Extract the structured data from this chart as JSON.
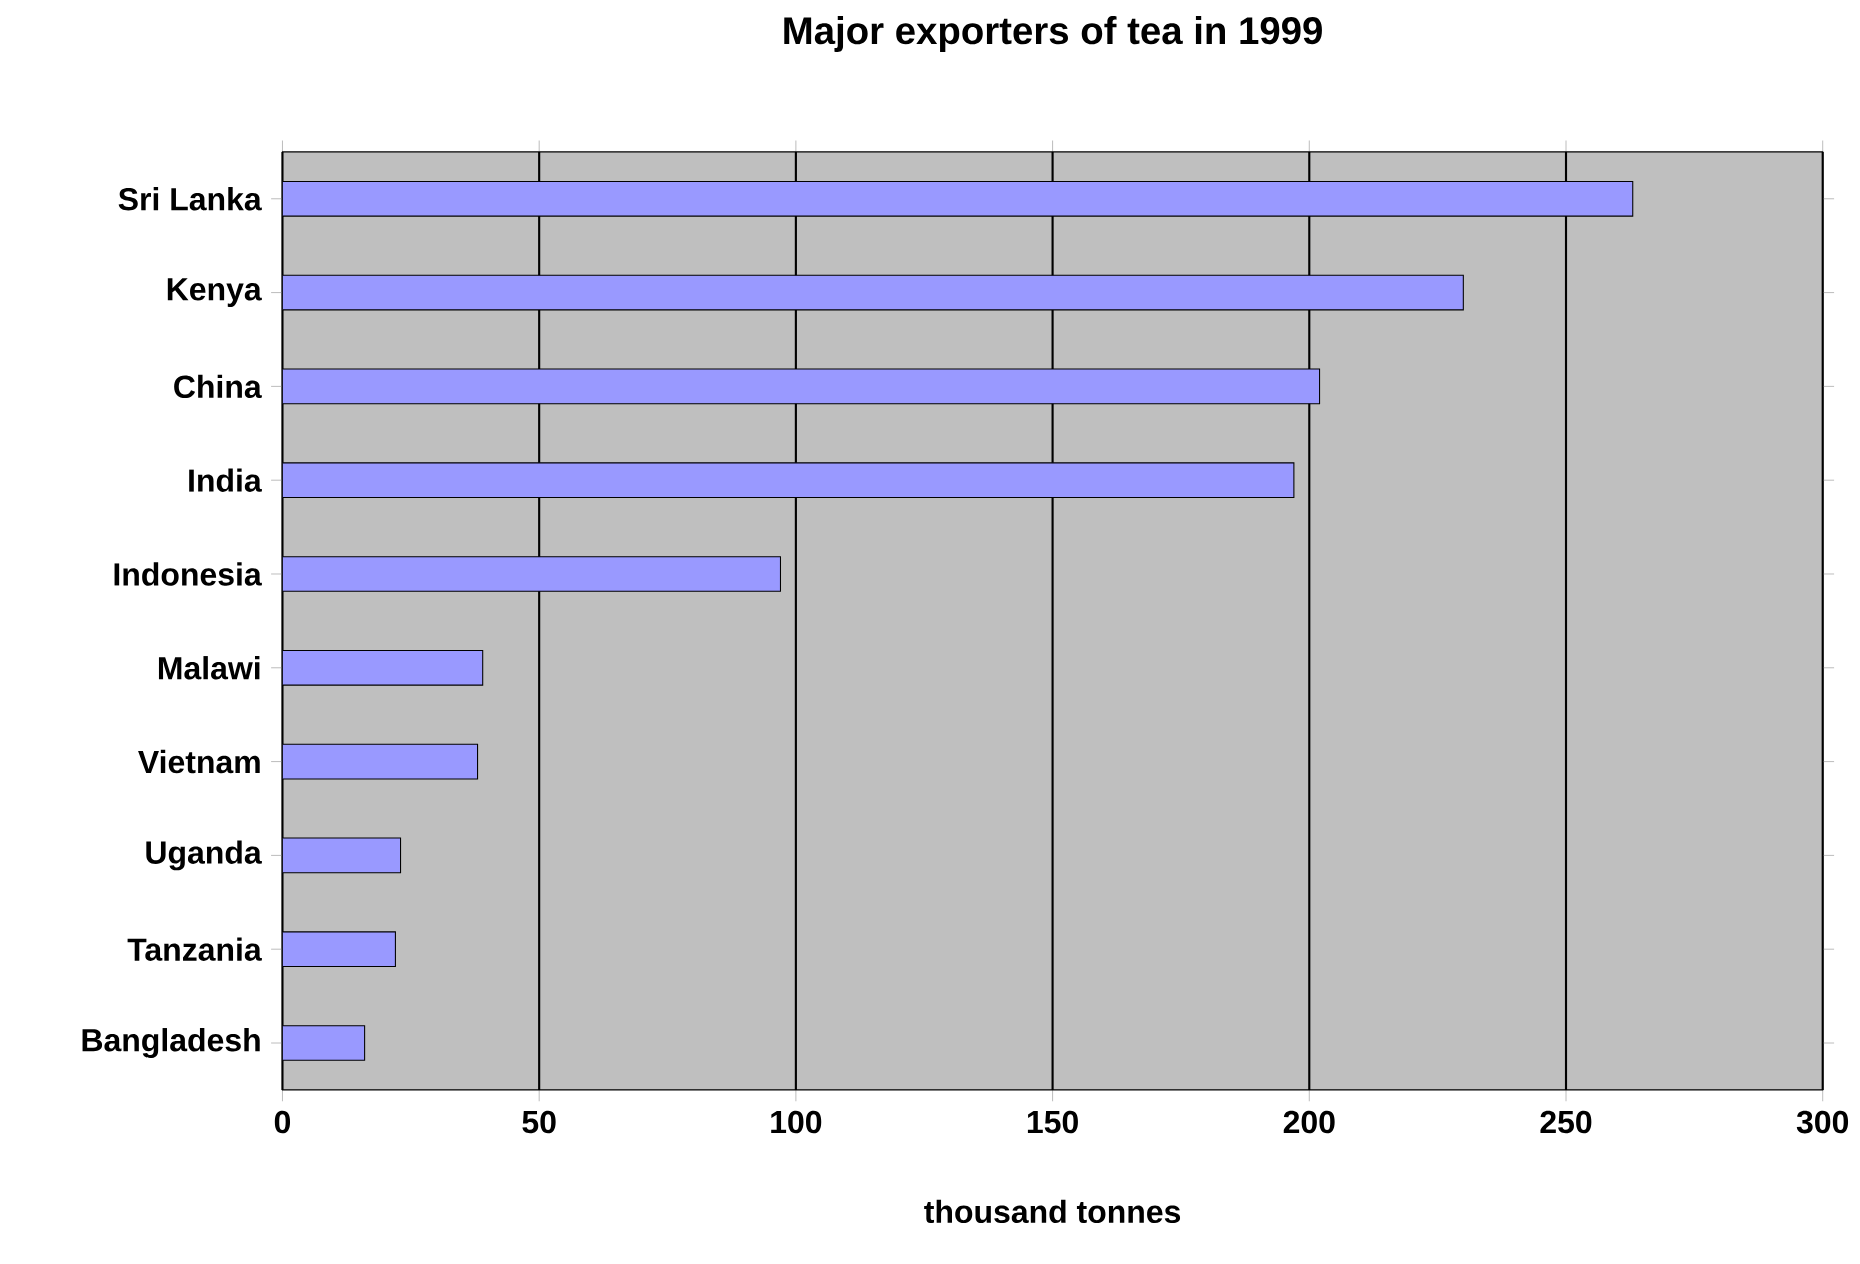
{
  "chart_data": {
    "type": "bar",
    "orientation": "horizontal",
    "title": "Major exporters of tea in 1999",
    "xlabel": "thousand tonnes",
    "categories": [
      "Sri Lanka",
      "Kenya",
      "China",
      "India",
      "Indonesia",
      "Malawi",
      "Vietnam",
      "Uganda",
      "Tanzania",
      "Bangladesh"
    ],
    "values": [
      263,
      230,
      202,
      197,
      97,
      39,
      38,
      23,
      22,
      16
    ],
    "color": "#9999ff",
    "xlim": [
      0,
      300
    ],
    "xticks": [
      0,
      50,
      100,
      150,
      200,
      250,
      300
    ],
    "grid": "x"
  }
}
